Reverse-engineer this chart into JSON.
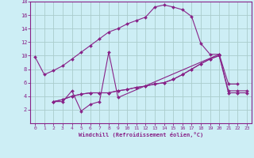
{
  "background_color": "#cdeef5",
  "grid_color": "#aacccc",
  "line_color": "#882288",
  "xlabel": "Windchill (Refroidissement éolien,°C)",
  "xlim": [
    -0.5,
    23.5
  ],
  "ylim": [
    0,
    18
  ],
  "yticks": [
    2,
    4,
    6,
    8,
    10,
    12,
    14,
    16,
    18
  ],
  "xticks": [
    0,
    1,
    2,
    3,
    4,
    5,
    6,
    7,
    8,
    9,
    10,
    11,
    12,
    13,
    14,
    15,
    16,
    17,
    18,
    19,
    20,
    21,
    22,
    23
  ],
  "series": [
    {
      "x": [
        0,
        1,
        2,
        3,
        4,
        5,
        6,
        7,
        8,
        9,
        10,
        11,
        12,
        13,
        14,
        15,
        16,
        17,
        18,
        19,
        20
      ],
      "y": [
        9.8,
        7.2,
        7.8,
        8.5,
        9.5,
        10.5,
        11.5,
        12.5,
        13.5,
        14.0,
        14.7,
        15.2,
        15.7,
        17.2,
        17.5,
        17.2,
        16.8,
        15.8,
        11.8,
        10.2,
        10.2
      ]
    },
    {
      "x": [
        2,
        3,
        4,
        5,
        6,
        7,
        8,
        9,
        20,
        21,
        22
      ],
      "y": [
        3.2,
        3.2,
        4.8,
        1.8,
        2.8,
        3.2,
        10.5,
        3.8,
        10.2,
        5.8,
        5.8
      ]
    },
    {
      "x": [
        2,
        3,
        4,
        5,
        6,
        7,
        8,
        9,
        10,
        11,
        12,
        13,
        14,
        15,
        16,
        17,
        18,
        19,
        20,
        21,
        22,
        23
      ],
      "y": [
        3.2,
        3.5,
        4.0,
        4.3,
        4.5,
        4.5,
        4.5,
        4.8,
        5.0,
        5.3,
        5.5,
        5.8,
        6.0,
        6.5,
        7.2,
        8.0,
        8.8,
        9.5,
        10.0,
        4.8,
        4.8,
        4.8
      ]
    },
    {
      "x": [
        2,
        3,
        4,
        5,
        6,
        7,
        8,
        9,
        10,
        11,
        12,
        13,
        14,
        15,
        16,
        17,
        18,
        19,
        20,
        21,
        22,
        23
      ],
      "y": [
        3.2,
        3.5,
        4.0,
        4.3,
        4.5,
        4.5,
        4.5,
        4.8,
        5.0,
        5.3,
        5.5,
        5.8,
        6.0,
        6.5,
        7.2,
        8.0,
        8.8,
        9.5,
        10.0,
        4.5,
        4.5,
        4.5
      ]
    }
  ]
}
